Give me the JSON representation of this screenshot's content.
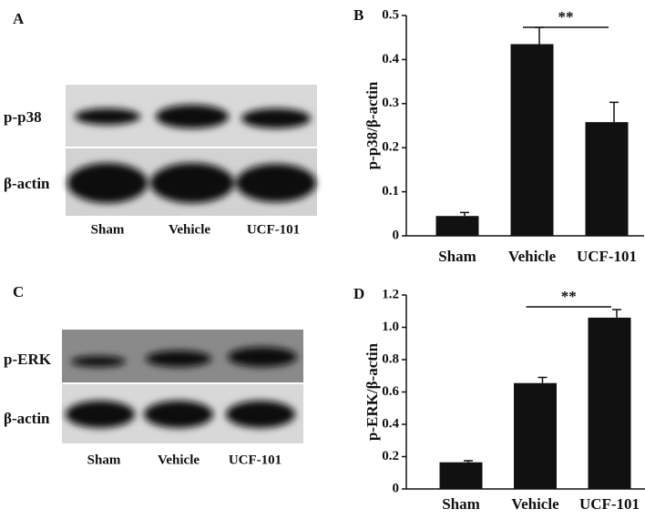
{
  "panels": [
    "A",
    "B",
    "C",
    "D"
  ],
  "blots": [
    {
      "rows": [
        "p-p38",
        "β-actin"
      ],
      "lanes": [
        "Sham",
        "Vehicle",
        "UCF-101"
      ]
    },
    {
      "rows": [
        "p-ERK",
        "β-actin"
      ],
      "lanes": [
        "Sham",
        "Vehicle",
        "UCF-101"
      ]
    }
  ],
  "chart_data": [
    {
      "type": "bar",
      "y_label": "p-p38/β-actin",
      "categories": [
        "Sham",
        "Vehicle",
        "UCF-101"
      ],
      "values": [
        0.045,
        0.435,
        0.258
      ],
      "errors": [
        0.008,
        0.038,
        0.045
      ],
      "color": "#111111",
      "ylim": [
        0,
        0.5
      ],
      "yticks": [
        0,
        0.1,
        0.2,
        0.3,
        0.4,
        0.5
      ],
      "annotation": "**"
    },
    {
      "type": "bar",
      "y_label": "p-ERK/β-actin",
      "categories": [
        "Sham",
        "Vehicle",
        "UCF-101"
      ],
      "values": [
        0.165,
        0.655,
        1.06
      ],
      "errors": [
        0.01,
        0.035,
        0.05
      ],
      "color": "#111111",
      "ylim": [
        0,
        1.2
      ],
      "yticks": [
        0,
        0.2,
        0.4,
        0.6,
        0.8,
        {
          "value": 1,
          "label": "1.0"
        },
        1.2
      ],
      "annotation": "**"
    }
  ]
}
